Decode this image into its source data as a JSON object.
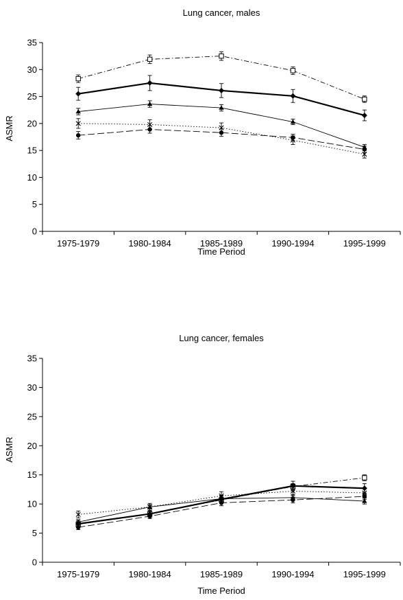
{
  "chart_data": [
    {
      "type": "line",
      "title": "Lung cancer, males",
      "xlabel": "Time Period",
      "ylabel": "ASMR",
      "ylim": [
        0,
        35
      ],
      "yticks": [
        0,
        5,
        10,
        15,
        20,
        25,
        30,
        35
      ],
      "categories": [
        "1975-1979",
        "1980-1984",
        "1985-1989",
        "1990-1994",
        "1995-1999"
      ],
      "grid": false,
      "legend": "none",
      "series": [
        {
          "style": "dash-dot",
          "marker": "square-open",
          "width": "thin",
          "values": [
            28.3,
            31.9,
            32.5,
            29.8,
            24.5
          ],
          "errors": [
            0.7,
            0.8,
            0.8,
            0.7,
            0.6
          ]
        },
        {
          "style": "solid",
          "marker": "diamond-filled",
          "width": "thick",
          "values": [
            25.5,
            27.5,
            26.1,
            25.1,
            21.5
          ],
          "errors": [
            1.2,
            1.4,
            1.3,
            1.2,
            1.0
          ]
        },
        {
          "style": "solid",
          "marker": "triangle-filled",
          "width": "thin",
          "values": [
            22.2,
            23.6,
            22.9,
            20.3,
            15.6
          ],
          "errors": [
            0.6,
            0.6,
            0.6,
            0.5,
            0.5
          ]
        },
        {
          "style": "dotted",
          "marker": "x",
          "width": "thin",
          "values": [
            20.0,
            19.8,
            19.2,
            16.9,
            14.3
          ],
          "errors": [
            0.9,
            0.9,
            0.9,
            0.8,
            0.7
          ]
        },
        {
          "style": "long-dash",
          "marker": "circle-filled",
          "width": "thin",
          "values": [
            17.8,
            18.9,
            18.3,
            17.4,
            15.2
          ],
          "errors": [
            0.7,
            0.7,
            0.7,
            0.6,
            0.6
          ]
        }
      ]
    },
    {
      "type": "line",
      "title": "Lung cancer, females",
      "xlabel": "Time Period",
      "ylabel": "ASMR",
      "ylim": [
        0,
        35
      ],
      "yticks": [
        0,
        5,
        10,
        15,
        20,
        25,
        30,
        35
      ],
      "categories": [
        "1975-1979",
        "1980-1984",
        "1985-1989",
        "1990-1994",
        "1995-1999"
      ],
      "grid": false,
      "legend": "none",
      "series": [
        {
          "style": "dash-dot",
          "marker": "square-open",
          "width": "thin",
          "values": [
            6.5,
            8.3,
            10.7,
            13.0,
            14.5
          ],
          "errors": [
            0.5,
            0.5,
            0.5,
            0.5,
            0.5
          ]
        },
        {
          "style": "solid",
          "marker": "diamond-filled",
          "width": "thick",
          "values": [
            6.6,
            8.3,
            10.8,
            13.1,
            12.7
          ],
          "errors": [
            0.6,
            0.6,
            0.7,
            0.8,
            0.8
          ]
        },
        {
          "style": "solid",
          "marker": "triangle-filled",
          "width": "thin",
          "values": [
            6.9,
            9.5,
            10.9,
            11.1,
            10.5
          ],
          "errors": [
            0.4,
            0.4,
            0.5,
            0.5,
            0.5
          ]
        },
        {
          "style": "dotted",
          "marker": "x",
          "width": "thin",
          "values": [
            8.2,
            9.5,
            11.4,
            12.2,
            11.9
          ],
          "errors": [
            0.6,
            0.6,
            0.7,
            0.7,
            0.7
          ]
        },
        {
          "style": "long-dash",
          "marker": "circle-filled",
          "width": "thin",
          "values": [
            6.0,
            7.9,
            10.2,
            10.7,
            11.3
          ],
          "errors": [
            0.4,
            0.4,
            0.5,
            0.5,
            0.5
          ]
        }
      ]
    }
  ]
}
